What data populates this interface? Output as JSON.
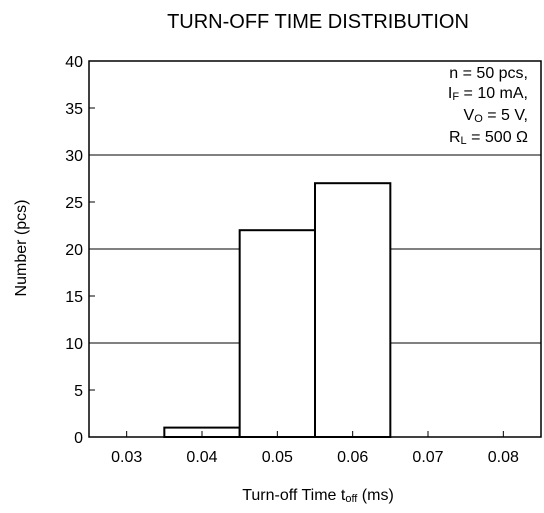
{
  "chart_data": {
    "type": "bar",
    "title": "TURN-OFF TIME DISTRIBUTION",
    "xlabel": {
      "main": "Turn-off Time  t",
      "sub": "off",
      "unit": " (ms)"
    },
    "ylabel": "Number  (pcs)",
    "x_ticks": [
      "0.03",
      "0.04",
      "0.05",
      "0.06",
      "0.07",
      "0.08"
    ],
    "y_ticks": [
      "0",
      "5",
      "10",
      "15",
      "20",
      "25",
      "30",
      "35",
      "40"
    ],
    "xlim": [
      0.025,
      0.085
    ],
    "ylim": [
      0,
      40
    ],
    "gridlines_y": [
      10,
      20,
      30
    ],
    "bins": [
      {
        "x_start": 0.035,
        "x_end": 0.045,
        "value": 1
      },
      {
        "x_start": 0.045,
        "x_end": 0.055,
        "value": 22
      },
      {
        "x_start": 0.055,
        "x_end": 0.065,
        "value": 27
      }
    ],
    "annotation": {
      "n": "n = 50 pcs,",
      "if_sym": "I",
      "if_sub": "F",
      "if_val": " = 10 mA,",
      "vo_sym": "V",
      "vo_sub": "O",
      "vo_val": " = 5 V,",
      "rl_sym": "R",
      "rl_sub": "L",
      "rl_val": " = 500 Ω"
    }
  }
}
